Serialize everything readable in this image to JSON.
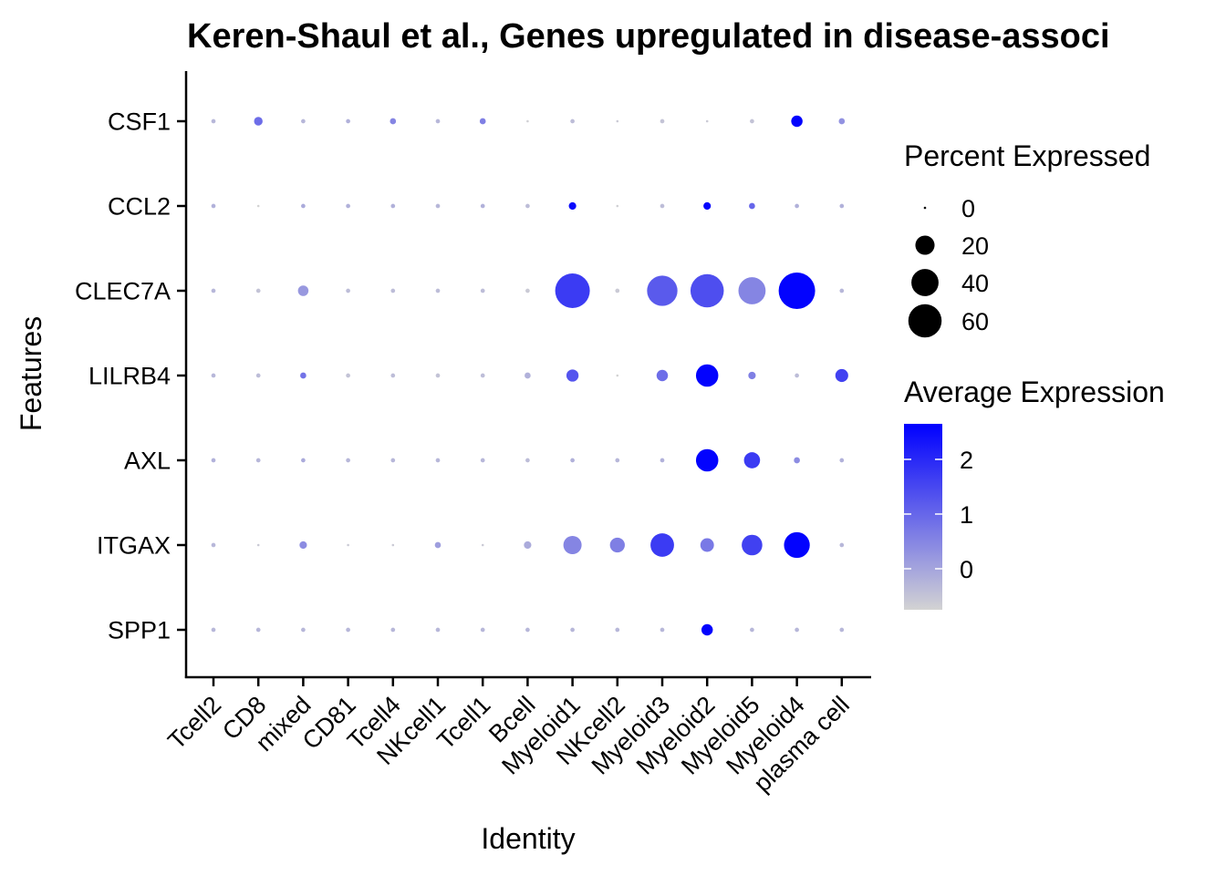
{
  "chart_data": {
    "type": "dotplot",
    "title": "Keren-Shaul et al., Genes upregulated in disease-associ",
    "xlabel": "Identity",
    "ylabel": "Features",
    "categories": [
      "Tcell2",
      "CD8",
      "mixed",
      "CD81",
      "Tcell4",
      "NKcell1",
      "Tcell1",
      "Bcell",
      "Myeloid1",
      "NKcell2",
      "Myeloid3",
      "Myeloid2",
      "Myeloid5",
      "Myeloid4",
      "plasma cell"
    ],
    "features": [
      "CSF1",
      "CCL2",
      "CLEC7A",
      "LILRB4",
      "AXL",
      "ITGAX",
      "SPP1"
    ],
    "percent_expressed": [
      [
        1,
        4,
        1,
        1,
        2,
        1,
        2,
        0,
        1,
        0,
        1,
        0,
        1,
        7,
        2
      ],
      [
        1,
        0,
        1,
        1,
        1,
        1,
        1,
        1,
        3,
        0,
        1,
        3,
        2,
        1,
        1
      ],
      [
        1,
        1,
        6,
        1,
        1,
        1,
        1,
        1,
        65,
        1,
        50,
        60,
        40,
        72,
        1
      ],
      [
        1,
        1,
        2,
        1,
        1,
        1,
        1,
        2,
        8,
        0,
        7,
        27,
        3,
        1,
        9
      ],
      [
        1,
        1,
        1,
        1,
        1,
        1,
        1,
        1,
        1,
        1,
        1,
        27,
        14,
        2,
        1
      ],
      [
        1,
        0,
        3,
        0,
        0,
        2,
        0,
        3,
        18,
        12,
        30,
        10,
        23,
        36,
        1
      ],
      [
        1,
        1,
        1,
        1,
        1,
        1,
        1,
        1,
        1,
        1,
        1,
        7,
        1,
        1,
        1
      ]
    ],
    "average_expression": [
      [
        -0.3,
        0.9,
        -0.3,
        -0.2,
        0.5,
        -0.3,
        0.6,
        -0.7,
        -0.4,
        -0.6,
        -0.5,
        -0.6,
        -0.5,
        2.6,
        0.3
      ],
      [
        -0.2,
        -0.8,
        -0.1,
        -0.2,
        -0.2,
        -0.3,
        -0.2,
        -0.4,
        2.5,
        -0.7,
        -0.4,
        2.6,
        1.0,
        -0.2,
        -0.2
      ],
      [
        -0.3,
        -0.5,
        0.2,
        -0.4,
        -0.4,
        -0.4,
        -0.4,
        -0.6,
        1.7,
        -0.6,
        1.2,
        1.4,
        0.5,
        2.6,
        -0.3
      ],
      [
        -0.3,
        -0.4,
        0.8,
        -0.5,
        -0.4,
        -0.5,
        -0.4,
        -0.2,
        1.3,
        -0.8,
        0.9,
        2.6,
        0.6,
        -0.4,
        1.6
      ],
      [
        -0.2,
        -0.3,
        -0.1,
        -0.3,
        -0.3,
        -0.3,
        -0.3,
        -0.4,
        -0.2,
        -0.3,
        -0.2,
        2.6,
        1.7,
        0.4,
        -0.2
      ],
      [
        -0.3,
        -0.6,
        0.4,
        -0.6,
        -0.6,
        0.1,
        -0.6,
        -0.1,
        0.5,
        0.6,
        1.7,
        0.7,
        1.6,
        2.6,
        -0.3
      ],
      [
        -0.3,
        -0.3,
        -0.3,
        -0.3,
        -0.3,
        -0.3,
        -0.3,
        -0.3,
        -0.3,
        -0.3,
        -0.3,
        2.6,
        -0.3,
        -0.3,
        -0.3
      ]
    ],
    "legend": {
      "size_title": "Percent Expressed",
      "size_values": [
        0,
        20,
        40,
        60
      ],
      "size_labels": [
        "0",
        "20",
        "40",
        "60"
      ],
      "color_title": "Average Expression",
      "color_ticks": [
        0,
        1,
        2
      ],
      "color_labels": [
        "0",
        "1",
        "2"
      ],
      "color_range": [
        -0.75,
        2.65
      ],
      "color_low": "#d3d3d3",
      "color_high": "#0000ff"
    }
  }
}
